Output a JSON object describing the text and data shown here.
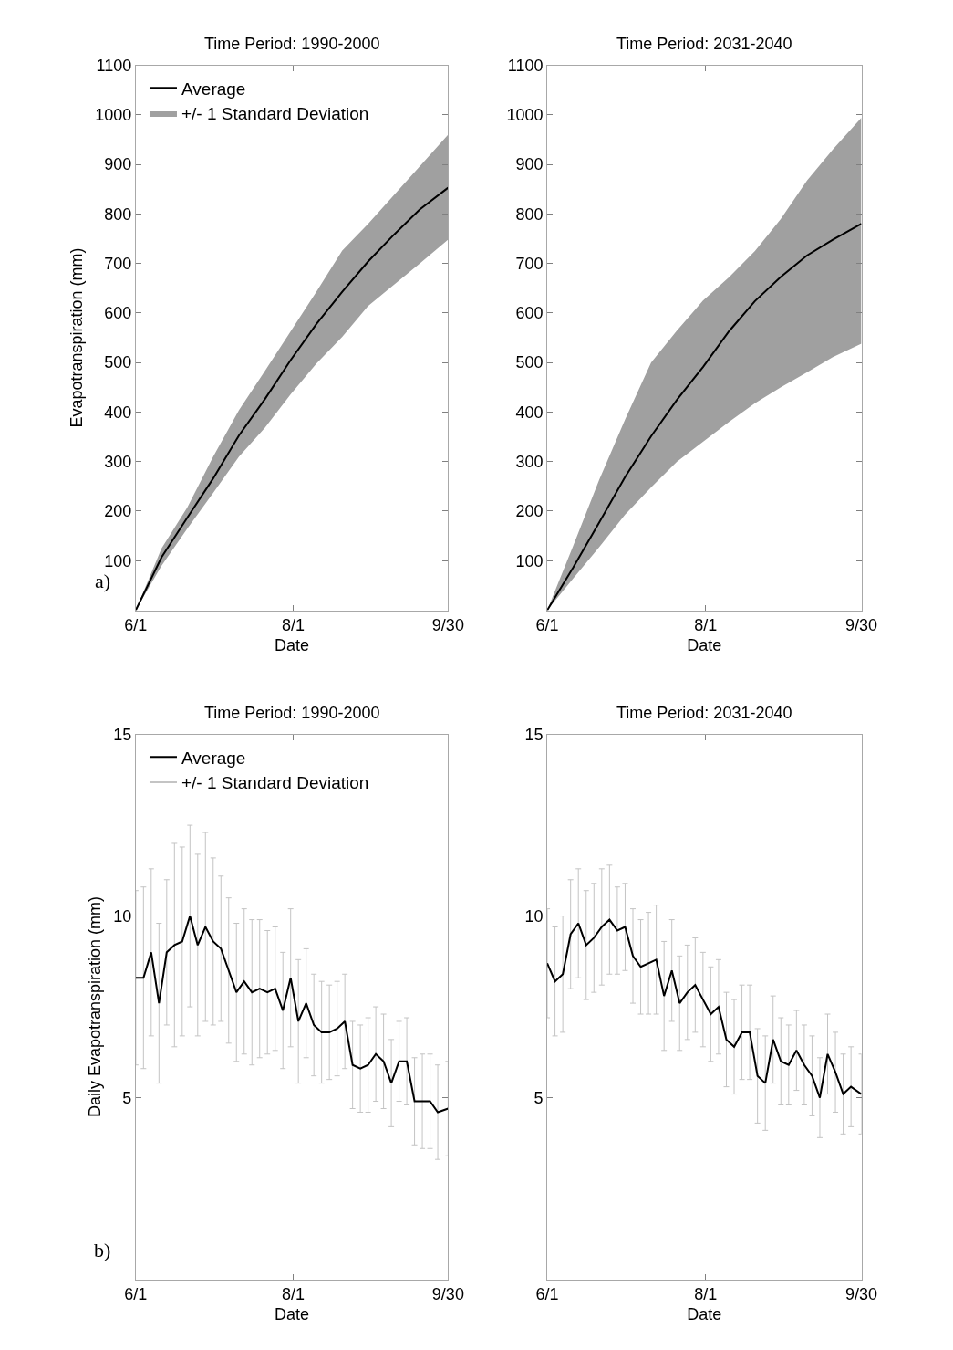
{
  "chart_data": [
    {
      "type": "line",
      "title": "Time Period: 1990-2000",
      "xlabel": "Date",
      "ylabel": "Evapotranspiration (mm)",
      "legend": "top left",
      "annotations": [
        "a)"
      ],
      "xlim": [
        "--06-01",
        "--09-30"
      ],
      "xticks": [
        {
          "value": "--06-01",
          "label": "6/1"
        },
        {
          "value": "--08-01",
          "label": "8/1"
        },
        {
          "value": "--09-30",
          "label": "9/30"
        }
      ],
      "ylim": [
        0,
        1100
      ],
      "yticks": [
        100,
        200,
        300,
        400,
        500,
        600,
        700,
        800,
        900,
        1000,
        1100
      ],
      "x": [
        "--06-01",
        "--06-11",
        "--06-21",
        "--07-01",
        "--07-11",
        "--07-21",
        "--07-31",
        "--08-10",
        "--08-20",
        "--08-30",
        "--09-09",
        "--09-19",
        "--09-30"
      ],
      "series": [
        {
          "name": "+/- 1 Standard Deviation",
          "color": "#a0a0a0",
          "type": "area",
          "values": [
            null,
            null,
            null,
            null,
            null,
            null,
            null,
            null,
            null,
            null,
            null,
            null,
            null
          ],
          "lower": [
            0,
            90,
            165,
            237,
            310,
            368,
            436,
            498,
            552,
            614,
            657,
            700,
            748
          ],
          "upper": [
            0,
            125,
            208,
            310,
            404,
            483,
            563,
            643,
            726,
            780,
            838,
            896,
            960
          ]
        },
        {
          "name": "Average",
          "color": "#000000",
          "values": [
            0,
            107,
            187,
            266,
            353,
            426,
            505,
            578,
            643,
            704,
            758,
            809,
            853
          ]
        }
      ]
    },
    {
      "type": "line",
      "title": "Time Period: 2031-2040",
      "xlabel": "Date",
      "legend": false,
      "xlim": [
        "--06-01",
        "--09-30"
      ],
      "xticks": [
        {
          "value": "--06-01",
          "label": "6/1"
        },
        {
          "value": "--08-01",
          "label": "8/1"
        },
        {
          "value": "--09-30",
          "label": "9/30"
        }
      ],
      "ylim": [
        0,
        1100
      ],
      "yticks": [
        100,
        200,
        300,
        400,
        500,
        600,
        700,
        800,
        900,
        1000,
        1100
      ],
      "x": [
        "--06-01",
        "--06-11",
        "--06-21",
        "--07-01",
        "--07-11",
        "--07-21",
        "--07-31",
        "--08-10",
        "--08-20",
        "--08-30",
        "--09-09",
        "--09-19",
        "--09-30"
      ],
      "series": [
        {
          "color": "#a0a0a0",
          "type": "area",
          "values": [
            null,
            null,
            null,
            null,
            null,
            null,
            null,
            null,
            null,
            null,
            null,
            null,
            null
          ],
          "lower": [
            0,
            64,
            127,
            193,
            248,
            300,
            340,
            380,
            418,
            450,
            480,
            511,
            538
          ],
          "upper": [
            0,
            130,
            263,
            385,
            500,
            565,
            625,
            672,
            725,
            790,
            867,
            930,
            994
          ]
        },
        {
          "color": "#000000",
          "values": [
            0,
            86,
            177,
            269,
            351,
            425,
            491,
            563,
            624,
            673,
            716,
            748,
            780
          ]
        }
      ]
    },
    {
      "type": "line",
      "title": "Time Period: 1990-2000",
      "xlabel": "Date",
      "ylabel": "Daily Evapotranspiration (mm)",
      "legend": "top left",
      "annotations": [
        "b)"
      ],
      "xlim": [
        "--06-01",
        "--09-30"
      ],
      "xticks": [
        {
          "value": "--06-01",
          "label": "6/1"
        },
        {
          "value": "--08-01",
          "label": "8/1"
        },
        {
          "value": "--09-30",
          "label": "9/30"
        }
      ],
      "ylim": [
        0,
        15
      ],
      "yticks": [
        5,
        10,
        15
      ],
      "x": [
        "--06-01",
        "--06-04",
        "--06-07",
        "--06-10",
        "--06-13",
        "--06-16",
        "--06-19",
        "--06-22",
        "--06-25",
        "--06-28",
        "--07-01",
        "--07-04",
        "--07-07",
        "--07-10",
        "--07-13",
        "--07-16",
        "--07-19",
        "--07-22",
        "--07-25",
        "--07-28",
        "--07-31",
        "--08-03",
        "--08-06",
        "--08-09",
        "--08-12",
        "--08-15",
        "--08-18",
        "--08-21",
        "--08-24",
        "--08-27",
        "--08-30",
        "--09-02",
        "--09-05",
        "--09-08",
        "--09-11",
        "--09-14",
        "--09-17",
        "--09-20",
        "--09-23",
        "--09-26",
        "--09-30"
      ],
      "series": [
        {
          "name": "Average",
          "color": "#000000",
          "values": [
            8.3,
            8.3,
            9.0,
            7.6,
            9.0,
            9.2,
            9.3,
            10.0,
            9.2,
            9.7,
            9.3,
            9.1,
            8.5,
            7.9,
            8.2,
            7.9,
            8.0,
            7.9,
            8.0,
            7.4,
            8.3,
            7.1,
            7.6,
            7.0,
            6.8,
            6.8,
            6.9,
            7.1,
            5.9,
            5.8,
            5.9,
            6.2,
            6.0,
            5.4,
            6.0,
            6.0,
            4.9,
            4.9,
            4.9,
            4.6,
            4.7
          ],
          "errors": [
            2.4,
            2.5,
            2.3,
            2.2,
            2.0,
            2.8,
            2.6,
            2.5,
            2.5,
            2.6,
            2.3,
            2.0,
            2.0,
            1.9,
            2.0,
            2.0,
            1.9,
            1.7,
            1.7,
            1.6,
            1.9,
            1.7,
            1.5,
            1.4,
            1.4,
            1.3,
            1.3,
            1.3,
            1.2,
            1.2,
            1.3,
            1.3,
            1.3,
            1.2,
            1.1,
            1.2,
            1.2,
            1.3,
            1.3,
            1.3,
            1.3
          ]
        },
        {
          "name": "+/- 1 Standard Deviation",
          "color": "#c4c4c4",
          "values": [
            null,
            null,
            null,
            null,
            null,
            null,
            null,
            null,
            null,
            null,
            null,
            null,
            null,
            null,
            null,
            null,
            null,
            null,
            null,
            null,
            null,
            null,
            null,
            null,
            null,
            null,
            null,
            null,
            null,
            null,
            null,
            null,
            null,
            null,
            null,
            null,
            null,
            null,
            null,
            null,
            null
          ]
        }
      ]
    },
    {
      "type": "line",
      "title": "Time Period: 2031-2040",
      "xlabel": "Date",
      "legend": false,
      "xlim": [
        "--06-01",
        "--09-30"
      ],
      "xticks": [
        {
          "value": "--06-01",
          "label": "6/1"
        },
        {
          "value": "--08-01",
          "label": "8/1"
        },
        {
          "value": "--09-30",
          "label": "9/30"
        }
      ],
      "ylim": [
        0,
        15
      ],
      "yticks": [
        5,
        10,
        15
      ],
      "x": [
        "--06-01",
        "--06-04",
        "--06-07",
        "--06-10",
        "--06-13",
        "--06-16",
        "--06-19",
        "--06-22",
        "--06-25",
        "--06-28",
        "--07-01",
        "--07-04",
        "--07-07",
        "--07-10",
        "--07-13",
        "--07-16",
        "--07-19",
        "--07-22",
        "--07-25",
        "--07-28",
        "--07-31",
        "--08-03",
        "--08-06",
        "--08-09",
        "--08-12",
        "--08-15",
        "--08-18",
        "--08-21",
        "--08-24",
        "--08-27",
        "--08-30",
        "--09-02",
        "--09-05",
        "--09-08",
        "--09-11",
        "--09-14",
        "--09-17",
        "--09-20",
        "--09-23",
        "--09-26",
        "--09-30"
      ],
      "series": [
        {
          "color": "#000000",
          "values": [
            8.7,
            8.2,
            8.4,
            9.5,
            9.8,
            9.2,
            9.4,
            9.7,
            9.9,
            9.6,
            9.7,
            8.9,
            8.6,
            8.7,
            8.8,
            7.8,
            8.5,
            7.6,
            7.9,
            8.1,
            7.7,
            7.3,
            7.5,
            6.6,
            6.4,
            6.8,
            6.8,
            5.6,
            5.4,
            6.6,
            6.0,
            5.9,
            6.3,
            5.9,
            5.6,
            5.0,
            6.2,
            5.7,
            5.1,
            5.3,
            5.1
          ],
          "errors": [
            1.5,
            1.5,
            1.6,
            1.5,
            1.5,
            1.5,
            1.5,
            1.6,
            1.5,
            1.2,
            1.2,
            1.3,
            1.3,
            1.4,
            1.5,
            1.5,
            1.4,
            1.3,
            1.3,
            1.3,
            1.3,
            1.3,
            1.3,
            1.3,
            1.3,
            1.3,
            1.3,
            1.3,
            1.3,
            1.2,
            1.2,
            1.1,
            1.1,
            1.1,
            1.1,
            1.1,
            1.1,
            1.1,
            1.1,
            1.1,
            1.1
          ]
        },
        {
          "color": "#c4c4c4",
          "values": [
            null,
            null,
            null,
            null,
            null,
            null,
            null,
            null,
            null,
            null,
            null,
            null,
            null,
            null,
            null,
            null,
            null,
            null,
            null,
            null,
            null,
            null,
            null,
            null,
            null,
            null,
            null,
            null,
            null,
            null,
            null,
            null,
            null,
            null,
            null,
            null,
            null,
            null,
            null,
            null,
            null
          ]
        }
      ]
    }
  ]
}
